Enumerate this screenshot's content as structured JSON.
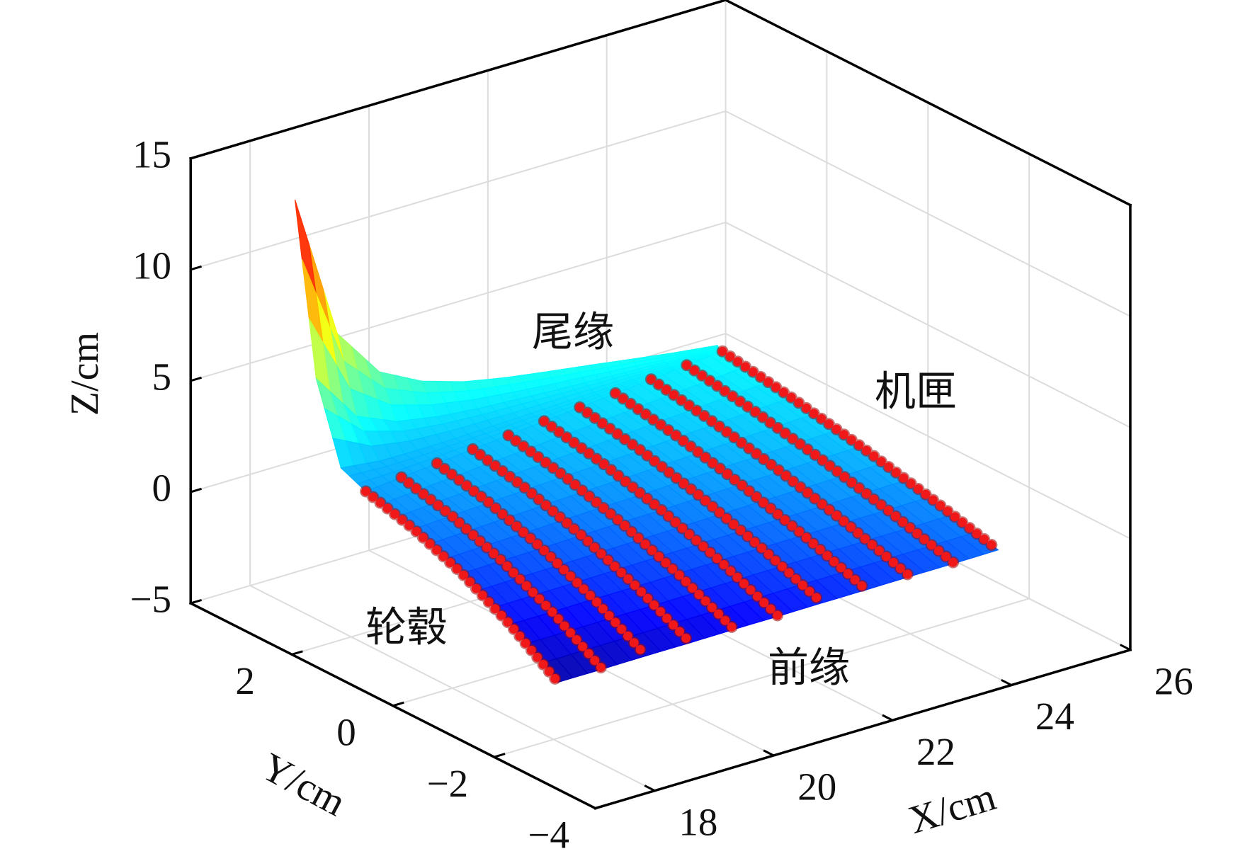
{
  "chart_data": {
    "type": "surface3d",
    "xlabel": "X/cm",
    "ylabel": "Y/cm",
    "zlabel": "Z/cm",
    "xlim": [
      17,
      26
    ],
    "ylim": [
      -4,
      4
    ],
    "zlim": [
      -5,
      15
    ],
    "xticks": [
      18,
      20,
      22,
      24,
      26
    ],
    "yticks": [
      {
        "value": -4,
        "label": "−4"
      },
      {
        "value": -2,
        "label": "−2"
      },
      0,
      2
    ],
    "zticks": [
      {
        "value": -5,
        "label": "−5"
      },
      0,
      5,
      10,
      15
    ],
    "grid": true,
    "annotations": [
      {
        "text": "尾缘"
      },
      {
        "text": "机匣"
      },
      {
        "text": "轮毂"
      },
      {
        "text": "前缘"
      }
    ],
    "surface": {
      "colormap": "jet",
      "clim": [
        -4,
        13
      ],
      "x": [
        18.5,
        19.1,
        19.7,
        20.3,
        20.9,
        21.5,
        22.1,
        22.7,
        23.3,
        23.9,
        24.5
      ],
      "y": [
        [
          3.7,
          3.28,
          2.79,
          2.3,
          1.35,
          0.4,
          -0.55,
          -1.5
        ],
        [
          3.57,
          3.19,
          2.74,
          2.3,
          1.31,
          0.32,
          -0.68,
          -1.67
        ],
        [
          3.44,
          3.1,
          2.7,
          2.3,
          1.27,
          0.23,
          -0.8,
          -1.83
        ],
        [
          3.31,
          3.01,
          2.65,
          2.3,
          1.23,
          0.15,
          -0.93,
          -2.0
        ],
        [
          3.18,
          2.92,
          2.61,
          2.3,
          1.19,
          0.07,
          -1.05,
          -2.16
        ],
        [
          3.05,
          2.83,
          2.56,
          2.3,
          1.14,
          -0.02,
          -1.17,
          -2.33
        ],
        [
          2.92,
          2.73,
          2.52,
          2.3,
          1.1,
          -0.1,
          -1.29,
          -2.49
        ],
        [
          2.79,
          2.64,
          2.47,
          2.3,
          1.06,
          -0.18,
          -1.42,
          -2.66
        ],
        [
          2.66,
          2.55,
          2.43,
          2.3,
          1.02,
          -0.26,
          -1.54,
          -2.82
        ],
        [
          2.53,
          2.46,
          2.38,
          2.3,
          0.98,
          -0.35,
          -1.67,
          -2.99
        ],
        [
          2.4,
          2.37,
          2.34,
          2.3,
          0.94,
          -0.43,
          -1.79,
          -3.15
        ]
      ],
      "z": [
        [
          12.3,
          4.74,
          1.29,
          0.8,
          0.2,
          -0.7,
          -1.9,
          -3.4
        ],
        [
          5.96,
          2.68,
          1.18,
          0.96,
          0.37,
          -0.51,
          -1.66,
          -3.09
        ],
        [
          3.91,
          2.07,
          1.23,
          1.11,
          0.53,
          -0.32,
          -1.42,
          -2.78
        ],
        [
          3.17,
          1.92,
          1.35,
          1.27,
          0.7,
          -0.12,
          -1.18,
          -2.47
        ],
        [
          2.82,
          1.9,
          1.48,
          1.42,
          0.86,
          0.07,
          -0.94,
          -2.16
        ],
        [
          2.68,
          1.96,
          1.63,
          1.58,
          1.02,
          0.26,
          -0.69,
          -1.85
        ],
        [
          2.63,
          2.04,
          1.77,
          1.73,
          1.18,
          0.46,
          -0.45,
          -1.54
        ],
        [
          2.59,
          2.13,
          1.92,
          1.89,
          1.35,
          0.65,
          -0.21,
          -1.23
        ],
        [
          2.54,
          2.21,
          2.06,
          2.04,
          1.51,
          0.84,
          0.03,
          -0.92
        ],
        [
          2.5,
          2.3,
          2.21,
          2.2,
          1.68,
          1.04,
          0.27,
          -0.61
        ],
        [
          2.5,
          2.4,
          2.36,
          2.35,
          1.84,
          1.23,
          0.51,
          -0.3
        ]
      ]
    },
    "markers": {
      "color": "#f01818",
      "x": [
        18.5,
        19.1,
        19.7,
        20.3,
        20.9,
        21.5,
        22.1,
        22.7,
        23.3,
        23.9,
        24.5
      ],
      "y": [
        [
          2.3,
          1.35,
          0.4,
          -0.55,
          -1.5
        ],
        [
          2.3,
          1.31,
          0.32,
          -0.68,
          -1.67
        ],
        [
          2.3,
          1.27,
          0.23,
          -0.8,
          -1.83
        ],
        [
          2.3,
          1.23,
          0.15,
          -0.93,
          -2.0
        ],
        [
          2.3,
          1.19,
          0.07,
          -1.05,
          -2.16
        ],
        [
          2.3,
          1.14,
          -0.02,
          -1.17,
          -2.33
        ],
        [
          2.3,
          1.1,
          -0.1,
          -1.29,
          -2.49
        ],
        [
          2.3,
          1.06,
          -0.18,
          -1.42,
          -2.66
        ],
        [
          2.3,
          1.02,
          -0.26,
          -1.54,
          -2.82
        ],
        [
          2.3,
          0.98,
          -0.35,
          -1.67,
          -2.99
        ],
        [
          2.3,
          0.94,
          -0.43,
          -1.79,
          -3.15
        ]
      ],
      "z": [
        [
          0.8,
          0.2,
          -0.7,
          -1.9,
          -3.4
        ],
        [
          0.96,
          0.37,
          -0.51,
          -1.66,
          -3.09
        ],
        [
          1.11,
          0.53,
          -0.32,
          -1.42,
          -2.78
        ],
        [
          1.27,
          0.7,
          -0.12,
          -1.18,
          -2.47
        ],
        [
          1.42,
          0.86,
          0.07,
          -0.94,
          -2.16
        ],
        [
          1.58,
          1.02,
          0.26,
          -0.69,
          -1.85
        ],
        [
          1.73,
          1.18,
          0.46,
          -0.45,
          -1.54
        ],
        [
          1.89,
          1.35,
          0.65,
          -0.21,
          -1.23
        ],
        [
          2.04,
          1.51,
          0.84,
          0.03,
          -0.92
        ],
        [
          2.2,
          1.68,
          1.04,
          0.27,
          -0.61
        ],
        [
          2.35,
          1.84,
          1.23,
          0.51,
          -0.3
        ]
      ]
    }
  }
}
